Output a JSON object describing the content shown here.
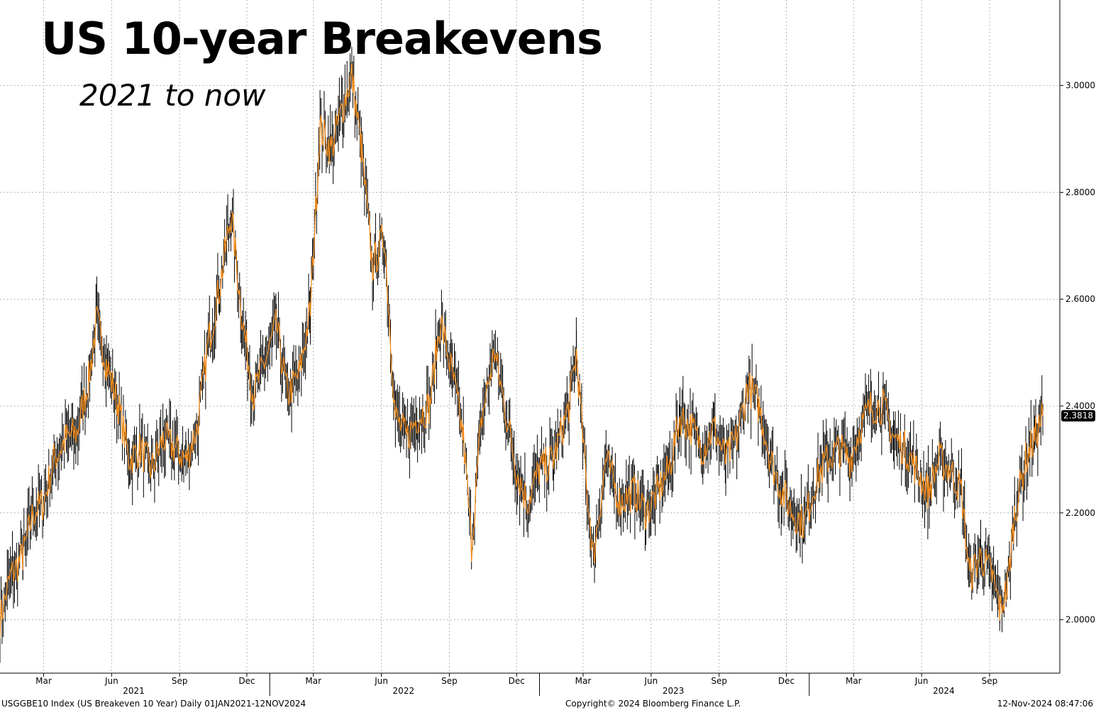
{
  "chart_data": {
    "type": "line",
    "title": "US 10-year Breakevens",
    "subtitle": "2021 to now",
    "series": [
      {
        "values": [
          [
            "2021-01-01",
            2.0
          ],
          [
            "2021-01-15",
            2.08
          ],
          [
            "2021-02-01",
            2.12
          ],
          [
            "2021-02-15",
            2.2
          ],
          [
            "2021-03-01",
            2.22
          ],
          [
            "2021-03-15",
            2.3
          ],
          [
            "2021-04-01",
            2.34
          ],
          [
            "2021-04-15",
            2.35
          ],
          [
            "2021-05-01",
            2.45
          ],
          [
            "2021-05-12",
            2.56
          ],
          [
            "2021-05-25",
            2.48
          ],
          [
            "2021-06-10",
            2.4
          ],
          [
            "2021-06-25",
            2.3
          ],
          [
            "2021-07-10",
            2.32
          ],
          [
            "2021-07-25",
            2.28
          ],
          [
            "2021-08-10",
            2.34
          ],
          [
            "2021-08-25",
            2.32
          ],
          [
            "2021-09-10",
            2.3
          ],
          [
            "2021-09-25",
            2.36
          ],
          [
            "2021-10-10",
            2.52
          ],
          [
            "2021-10-25",
            2.62
          ],
          [
            "2021-11-10",
            2.76
          ],
          [
            "2021-11-25",
            2.56
          ],
          [
            "2021-12-10",
            2.42
          ],
          [
            "2021-12-25",
            2.48
          ],
          [
            "2022-01-10",
            2.55
          ],
          [
            "2022-01-25",
            2.42
          ],
          [
            "2022-02-10",
            2.46
          ],
          [
            "2022-02-25",
            2.58
          ],
          [
            "2022-03-10",
            2.92
          ],
          [
            "2022-03-25",
            2.88
          ],
          [
            "2022-04-10",
            2.96
          ],
          [
            "2022-04-22",
            3.02
          ],
          [
            "2022-05-05",
            2.88
          ],
          [
            "2022-05-20",
            2.66
          ],
          [
            "2022-06-05",
            2.72
          ],
          [
            "2022-06-20",
            2.38
          ],
          [
            "2022-07-05",
            2.34
          ],
          [
            "2022-07-20",
            2.38
          ],
          [
            "2022-08-05",
            2.4
          ],
          [
            "2022-08-20",
            2.56
          ],
          [
            "2022-09-05",
            2.46
          ],
          [
            "2022-09-20",
            2.34
          ],
          [
            "2022-10-01",
            2.14
          ],
          [
            "2022-10-15",
            2.38
          ],
          [
            "2022-11-01",
            2.5
          ],
          [
            "2022-11-15",
            2.4
          ],
          [
            "2022-12-01",
            2.28
          ],
          [
            "2022-12-15",
            2.22
          ],
          [
            "2023-01-01",
            2.28
          ],
          [
            "2023-01-20",
            2.3
          ],
          [
            "2023-02-10",
            2.4
          ],
          [
            "2023-02-20",
            2.5
          ],
          [
            "2023-03-05",
            2.26
          ],
          [
            "2023-03-15",
            2.12
          ],
          [
            "2023-04-01",
            2.3
          ],
          [
            "2023-04-20",
            2.22
          ],
          [
            "2023-05-10",
            2.24
          ],
          [
            "2023-05-25",
            2.2
          ],
          [
            "2023-06-10",
            2.24
          ],
          [
            "2023-06-25",
            2.28
          ],
          [
            "2023-07-10",
            2.38
          ],
          [
            "2023-07-25",
            2.36
          ],
          [
            "2023-08-10",
            2.32
          ],
          [
            "2023-08-25",
            2.36
          ],
          [
            "2023-09-10",
            2.3
          ],
          [
            "2023-09-25",
            2.34
          ],
          [
            "2023-10-10",
            2.44
          ],
          [
            "2023-10-25",
            2.4
          ],
          [
            "2023-11-10",
            2.3
          ],
          [
            "2023-11-25",
            2.24
          ],
          [
            "2023-12-10",
            2.2
          ],
          [
            "2023-12-25",
            2.18
          ],
          [
            "2024-01-10",
            2.26
          ],
          [
            "2024-01-25",
            2.3
          ],
          [
            "2024-02-10",
            2.32
          ],
          [
            "2024-02-25",
            2.3
          ],
          [
            "2024-03-10",
            2.36
          ],
          [
            "2024-03-25",
            2.4
          ],
          [
            "2024-04-10",
            2.4
          ],
          [
            "2024-04-25",
            2.34
          ],
          [
            "2024-05-10",
            2.32
          ],
          [
            "2024-05-25",
            2.28
          ],
          [
            "2024-06-10",
            2.24
          ],
          [
            "2024-06-25",
            2.3
          ],
          [
            "2024-07-10",
            2.28
          ],
          [
            "2024-07-25",
            2.24
          ],
          [
            "2024-08-05",
            2.08
          ],
          [
            "2024-08-20",
            2.12
          ],
          [
            "2024-09-05",
            2.08
          ],
          [
            "2024-09-15",
            2.02
          ],
          [
            "2024-09-25",
            2.06
          ],
          [
            "2024-10-05",
            2.2
          ],
          [
            "2024-10-20",
            2.3
          ],
          [
            "2024-11-01",
            2.34
          ],
          [
            "2024-11-12",
            2.3818
          ]
        ]
      }
    ],
    "x_range": [
      "2021-01-01",
      "2024-11-12"
    ],
    "ylim": [
      1.9,
      3.16
    ],
    "y_ticks": [
      "2.0000",
      "2.2000",
      "2.4000",
      "2.6000",
      "2.8000",
      "3.0000"
    ],
    "x_tick_labels": [
      {
        "date": "2021-03-01",
        "label": "Mar"
      },
      {
        "date": "2021-06-01",
        "label": "Jun"
      },
      {
        "date": "2021-09-01",
        "label": "Sep"
      },
      {
        "date": "2021-12-01",
        "label": "Dec"
      },
      {
        "date": "2022-03-01",
        "label": "Mar"
      },
      {
        "date": "2022-06-01",
        "label": "Jun"
      },
      {
        "date": "2022-09-01",
        "label": "Sep"
      },
      {
        "date": "2022-12-01",
        "label": "Dec"
      },
      {
        "date": "2023-03-01",
        "label": "Mar"
      },
      {
        "date": "2023-06-01",
        "label": "Jun"
      },
      {
        "date": "2023-09-01",
        "label": "Sep"
      },
      {
        "date": "2023-12-01",
        "label": "Dec"
      },
      {
        "date": "2024-03-01",
        "label": "Mar"
      },
      {
        "date": "2024-06-01",
        "label": "Jun"
      },
      {
        "date": "2024-09-01",
        "label": "Sep"
      }
    ],
    "year_labels": [
      {
        "date": "2021-07-01",
        "label": "2021"
      },
      {
        "date": "2022-07-01",
        "label": "2022"
      },
      {
        "date": "2023-07-01",
        "label": "2023"
      },
      {
        "date": "2024-07-01",
        "label": "2024"
      }
    ],
    "last_value_label": "2.3818",
    "grid": true,
    "colors": {
      "line": "#f08c1e",
      "bar": "#000000",
      "grid": "#b4b4b4",
      "last_badge": "#000000"
    }
  },
  "footer": {
    "left": "USGGBE10 Index (US Breakeven 10 Year)  Daily 01JAN2021-12NOV2024",
    "center": "Copyright© 2024 Bloomberg Finance L.P.",
    "right": "12-Nov-2024 08:47:06"
  }
}
